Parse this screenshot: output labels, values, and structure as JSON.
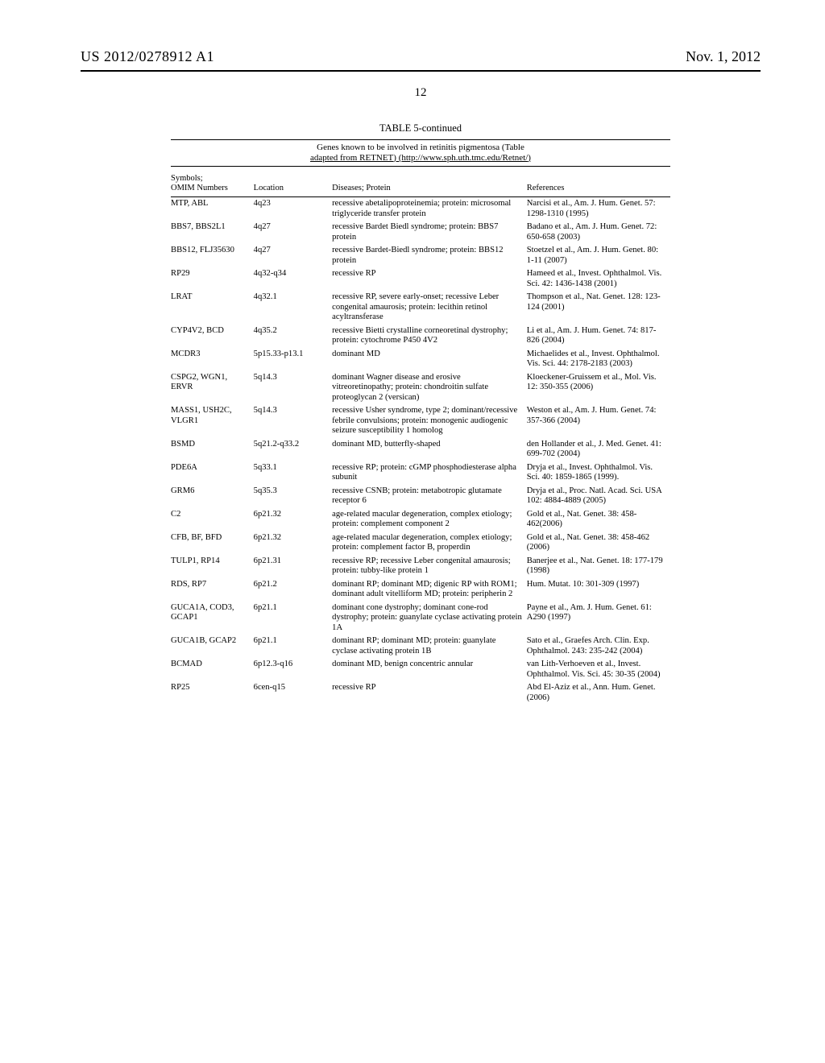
{
  "header": {
    "pub_id": "US 2012/0278912 A1",
    "pub_date": "Nov. 1, 2012",
    "page_number": "12"
  },
  "table": {
    "title": "TABLE 5-continued",
    "caption_line1": "Genes known to be involved in retinitis pigmentosa (Table",
    "caption_line2": "adapted from RETNET) (http://www.sph.uth.tmc.edu/Retnet/)",
    "columns": {
      "symbols_line1": "Symbols;",
      "symbols_line2": "OMIM Numbers",
      "location": "Location",
      "diseases": "Diseases; Protein",
      "references": "References"
    },
    "rows": [
      {
        "symbols": "MTP, ABL",
        "location": "4q23",
        "diseases": "recessive abetalipoproteinemia; protein: microsomal triglyceride transfer protein",
        "references": "Narcisi et al., Am. J. Hum. Genet. 57: 1298-1310 (1995)"
      },
      {
        "symbols": "BBS7, BBS2L1",
        "location": "4q27",
        "diseases": "recessive Bardet Biedl syndrome; protein: BBS7 protein",
        "references": "Badano et al., Am. J. Hum. Genet. 72: 650-658 (2003)"
      },
      {
        "symbols": "BBS12, FLJ35630",
        "location": "4q27",
        "diseases": "recessive Bardet-Biedl syndrome; protein: BBS12 protein",
        "references": "Stoetzel et al., Am. J. Hum. Genet. 80: 1-11 (2007)"
      },
      {
        "symbols": "RP29",
        "location": "4q32-q34",
        "diseases": "recessive RP",
        "references": "Hameed et al., Invest. Ophthalmol. Vis. Sci. 42: 1436-1438 (2001)"
      },
      {
        "symbols": "LRAT",
        "location": "4q32.1",
        "diseases": "recessive RP, severe early-onset; recessive Leber congenital amaurosis; protein: lecithin retinol acyltransferase",
        "references": "Thompson et al., Nat. Genet. 128: 123-124 (2001)"
      },
      {
        "symbols": "CYP4V2, BCD",
        "location": "4q35.2",
        "diseases": "recessive Bietti crystalline corneoretinal dystrophy; protein: cytochrome P450 4V2",
        "references": "Li et al., Am. J. Hum. Genet. 74: 817-826 (2004)"
      },
      {
        "symbols": "MCDR3",
        "location": "5p15.33-p13.1",
        "diseases": "dominant MD",
        "references": "Michaelides et al., Invest. Ophthalmol. Vis. Sci. 44: 2178-2183 (2003)"
      },
      {
        "symbols": "CSPG2, WGN1, ERVR",
        "location": "5q14.3",
        "diseases": "dominant Wagner disease and erosive vitreoretinopathy; protein: chondroitin sulfate proteoglycan 2 (versican)",
        "references": "Kloeckener-Gruissem et al., Mol. Vis. 12: 350-355 (2006)"
      },
      {
        "symbols": "MASS1, USH2C, VLGR1",
        "location": "5q14.3",
        "diseases": "recessive Usher syndrome, type 2; dominant/recessive febrile convulsions; protein: monogenic audiogenic seizure susceptibility 1 homolog",
        "references": "Weston et al., Am. J. Hum. Genet. 74: 357-366 (2004)"
      },
      {
        "symbols": "BSMD",
        "location": "5q21.2-q33.2",
        "diseases": "dominant MD, butterfly-shaped",
        "references": "den Hollander et al., J. Med. Genet. 41: 699-702 (2004)"
      },
      {
        "symbols": "PDE6A",
        "location": "5q33.1",
        "diseases": "recessive RP; protein: cGMP phosphodiesterase alpha subunit",
        "references": "Dryja et al., Invest. Ophthalmol. Vis. Sci. 40: 1859-1865 (1999)."
      },
      {
        "symbols": "GRM6",
        "location": "5q35.3",
        "diseases": "recessive CSNB; protein: metabotropic glutamate receptor 6",
        "references": "Dryja et al., Proc. Natl. Acad. Sci. USA 102: 4884-4889 (2005)"
      },
      {
        "symbols": "C2",
        "location": "6p21.32",
        "diseases": "age-related macular degeneration, complex etiology; protein: complement component 2",
        "references": "Gold et al., Nat. Genet. 38: 458-462(2006)"
      },
      {
        "symbols": "CFB, BF, BFD",
        "location": "6p21.32",
        "diseases": "age-related macular degeneration, complex etiology; protein: complement factor B, properdin",
        "references": "Gold et al., Nat. Genet. 38: 458-462 (2006)"
      },
      {
        "symbols": "TULP1, RP14",
        "location": "6p21.31",
        "diseases": "recessive RP; recessive Leber congenital amaurosis; protein: tubby-like protein 1",
        "references": "Banerjee et al., Nat. Genet. 18: 177-179 (1998)"
      },
      {
        "symbols": "RDS, RP7",
        "location": "6p21.2",
        "diseases": "dominant RP; dominant MD; digenic RP with ROM1; dominant adult vitelliform MD; protein: peripherin 2",
        "references": "Hum. Mutat. 10: 301-309 (1997)"
      },
      {
        "symbols": "GUCA1A, COD3, GCAP1",
        "location": "6p21.1",
        "diseases": "dominant cone dystrophy; dominant cone-rod dystrophy; protein: guanylate cyclase activating protein 1A",
        "references": "Payne et al., Am. J. Hum. Genet. 61: A290 (1997)"
      },
      {
        "symbols": "GUCA1B, GCAP2",
        "location": "6p21.1",
        "diseases": "dominant RP; dominant MD; protein: guanylate cyclase activating protein 1B",
        "references": "Sato et al., Graefes Arch. Clin. Exp. Ophthalmol. 243: 235-242 (2004)"
      },
      {
        "symbols": "BCMAD",
        "location": "6p12.3-q16",
        "diseases": "dominant MD, benign concentric annular",
        "references": "van Lith-Verhoeven et al., Invest. Ophthalmol. Vis. Sci. 45: 30-35 (2004)"
      },
      {
        "symbols": "RP25",
        "location": "6cen-q15",
        "diseases": "recessive RP",
        "references": "Abd El-Aziz et al., Ann. Hum. Genet. (2006)"
      }
    ]
  }
}
